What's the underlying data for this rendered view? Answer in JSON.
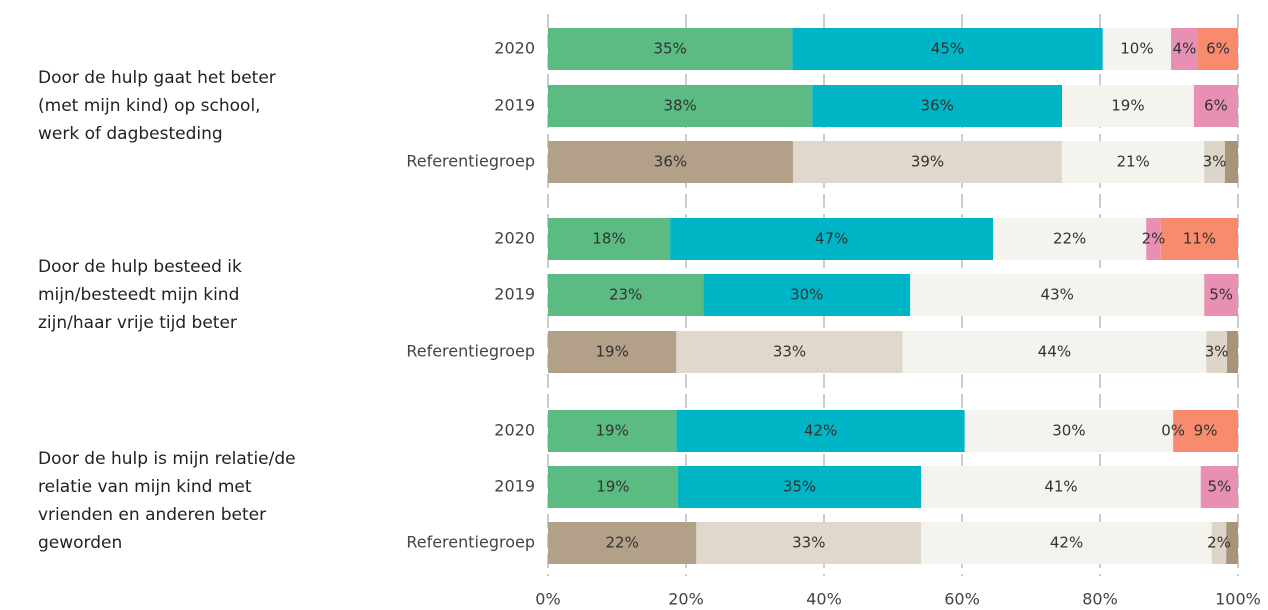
{
  "chart_data": {
    "type": "bar",
    "orientation": "horizontal",
    "stacked": true,
    "grid": true,
    "xlim": [
      0,
      100
    ],
    "xticks": [
      {
        "value": 0,
        "label": "0%"
      },
      {
        "value": 20,
        "label": "20%"
      },
      {
        "value": 40,
        "label": "40%"
      },
      {
        "value": 60,
        "label": "60%"
      },
      {
        "value": 80,
        "label": "80%"
      },
      {
        "value": 100,
        "label": "100%"
      }
    ],
    "groups": [
      {
        "label_lines": [
          "Door de hulp gaat het beter",
          "(met mijn kind) op school,",
          "werk of dagbesteding"
        ],
        "bars": [
          {
            "name": "2020",
            "values": [
              35.4,
              45.0,
              9.9,
              3.9,
              5.8
            ],
            "value_labels": [
              "35%",
              "45%",
              "10%",
              "4%",
              "6%"
            ],
            "colors": [
              "#5bbb83",
              "#00b5c6",
              "#f4f3ee",
              "#e88fb4",
              "#f88a6e"
            ]
          },
          {
            "name": "2019",
            "values": [
              38.3,
              36.2,
              19.1,
              6.4,
              0
            ],
            "value_labels": [
              "38%",
              "36%",
              "19%",
              "6%",
              null
            ],
            "colors": [
              "#5bbb83",
              "#00b5c6",
              "#f4f3ee",
              "#e88fb4",
              "#f88a6e"
            ]
          },
          {
            "name": "Referentiegroep",
            "values": [
              35.5,
              39.0,
              20.6,
              3.0,
              1.9
            ],
            "value_labels": [
              "36%",
              "39%",
              "21%",
              "3%",
              null
            ],
            "colors": [
              "#b3a088",
              "#e0d8cc",
              "#f4f3ee",
              "#ddd5c8",
              "#a89478"
            ]
          }
        ]
      },
      {
        "label_lines": [
          "Door de hulp besteed ik",
          "mijn/besteedt mijn kind",
          "zijn/haar vrije tijd beter"
        ],
        "bars": [
          {
            "name": "2020",
            "values": [
              17.7,
              46.8,
              22.2,
              2.1,
              11.2
            ],
            "value_labels": [
              "18%",
              "47%",
              "22%",
              "2%",
              "11%"
            ],
            "colors": [
              "#5bbb83",
              "#00b5c6",
              "#f4f3ee",
              "#e88fb4",
              "#f88a6e"
            ]
          },
          {
            "name": "2019",
            "values": [
              22.5,
              30.0,
              42.6,
              4.9,
              0
            ],
            "value_labels": [
              "23%",
              "30%",
              "43%",
              "5%",
              null
            ],
            "colors": [
              "#5bbb83",
              "#00b5c6",
              "#f4f3ee",
              "#e88fb4",
              "#f88a6e"
            ]
          },
          {
            "name": "Referentiegroep",
            "values": [
              18.6,
              32.8,
              44.0,
              3.0,
              1.6
            ],
            "value_labels": [
              "19%",
              "33%",
              "44%",
              "3%",
              null
            ],
            "colors": [
              "#b3a088",
              "#e0d8cc",
              "#f4f3ee",
              "#ddd5c8",
              "#a89478"
            ]
          }
        ]
      },
      {
        "label_lines": [
          "Door de hulp is mijn relatie/de",
          "relatie van mijn kind met",
          "vrienden en anderen beter",
          "geworden"
        ],
        "bars": [
          {
            "name": "2020",
            "values": [
              18.6,
              41.8,
              30.2,
              0,
              9.4
            ],
            "value_labels": [
              "19%",
              "42%",
              "30%",
              "0%",
              "9%"
            ],
            "colors": [
              "#5bbb83",
              "#00b5c6",
              "#f4f3ee",
              "#e88fb4",
              "#f88a6e"
            ]
          },
          {
            "name": "2019",
            "values": [
              18.8,
              35.3,
              40.5,
              5.4,
              0
            ],
            "value_labels": [
              "19%",
              "35%",
              "41%",
              "5%",
              null
            ],
            "colors": [
              "#5bbb83",
              "#00b5c6",
              "#f4f3ee",
              "#e88fb4",
              "#f88a6e"
            ]
          },
          {
            "name": "Referentiegroep",
            "values": [
              21.5,
              32.6,
              42.1,
              2.1,
              1.7
            ],
            "value_labels": [
              "22%",
              "33%",
              "42%",
              "2%",
              null
            ],
            "colors": [
              "#b3a088",
              "#e0d8cc",
              "#f4f3ee",
              "#ddd5c8",
              "#a89478"
            ]
          }
        ]
      }
    ]
  }
}
